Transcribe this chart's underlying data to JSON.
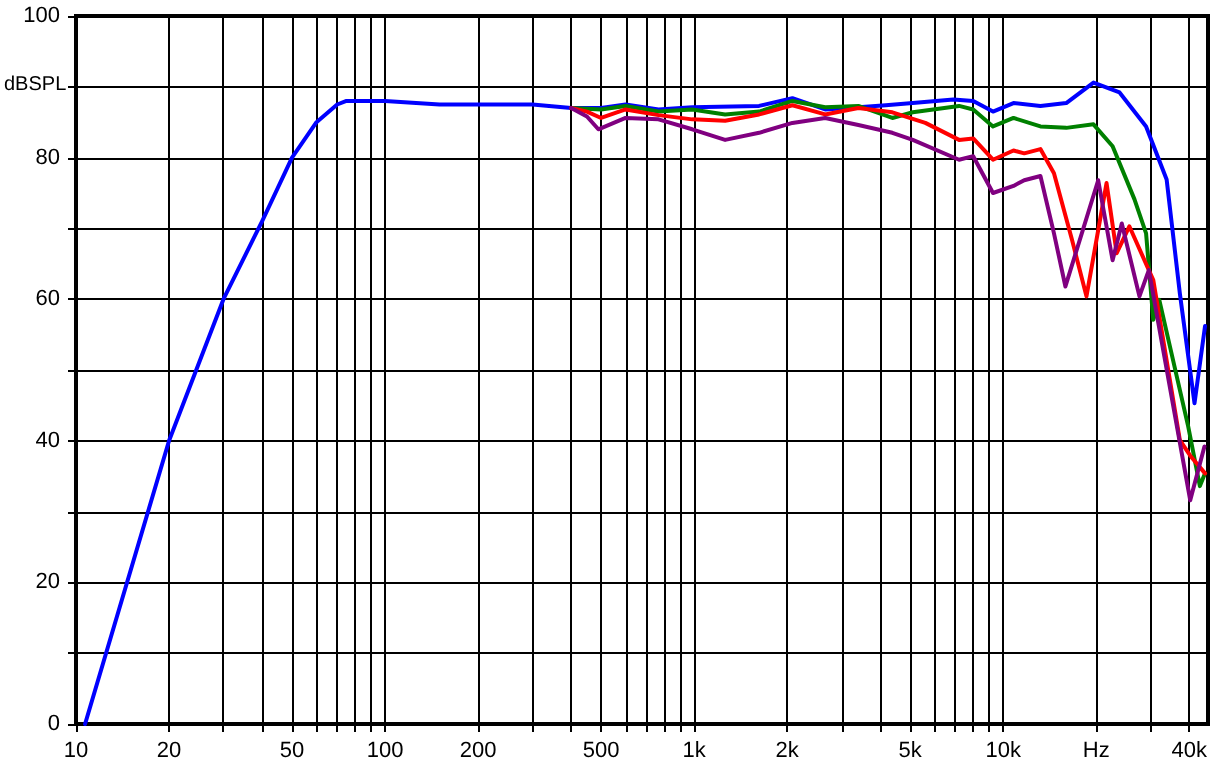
{
  "chart_data": {
    "type": "line",
    "ylabel": "dBSPL",
    "log": "x",
    "grid": true,
    "marker": "none",
    "line_style": "solid",
    "xlim": [
      10,
      46000
    ],
    "ylim": [
      0,
      100
    ],
    "xticks": [
      10,
      20,
      {
        "value": 30,
        "label": null
      },
      {
        "value": 40,
        "label": null
      },
      50,
      {
        "value": 60,
        "label": null
      },
      {
        "value": 70,
        "label": null
      },
      {
        "value": 80,
        "label": null
      },
      {
        "value": 90,
        "label": null
      },
      100,
      200,
      {
        "value": 300,
        "label": null
      },
      {
        "value": 400,
        "label": null
      },
      500,
      {
        "value": 600,
        "label": null
      },
      {
        "value": 700,
        "label": null
      },
      {
        "value": 800,
        "label": null
      },
      {
        "value": 900,
        "label": null
      },
      {
        "value": 1000,
        "label": "1k"
      },
      {
        "value": 2000,
        "label": "2k"
      },
      {
        "value": 3000,
        "label": null
      },
      {
        "value": 4000,
        "label": null
      },
      {
        "value": 5000,
        "label": "5k"
      },
      {
        "value": 6000,
        "label": null
      },
      {
        "value": 7000,
        "label": null
      },
      {
        "value": 8000,
        "label": null
      },
      {
        "value": 9000,
        "label": null
      },
      {
        "value": 10000,
        "label": "10k"
      },
      {
        "value": 20000,
        "label": "Hz"
      },
      {
        "value": 30000,
        "label": null
      },
      {
        "value": 40000,
        "label": "40k"
      }
    ],
    "yticks": [
      0,
      {
        "value": 10,
        "label": null
      },
      20,
      {
        "value": 30,
        "label": null
      },
      40,
      {
        "value": 50,
        "label": null
      },
      60,
      {
        "value": 70,
        "label": null
      },
      80,
      {
        "value": 90,
        "label": null
      },
      100
    ],
    "series": [
      {
        "color": "#0000ff",
        "x": [
          10.7,
          20,
          30,
          40,
          50,
          60,
          70,
          75,
          100,
          150,
          300,
          400,
          500,
          600,
          767,
          986,
          1623,
          2080,
          2655,
          3400,
          4170,
          5100,
          6900,
          8000,
          9270,
          10800,
          13200,
          16000,
          19600,
          23800,
          29000,
          33800,
          37300,
          41600,
          45000
        ],
        "values": [
          0,
          40,
          60,
          71,
          80,
          85,
          87.5,
          88,
          88,
          87.5,
          87.5,
          87,
          87,
          87.5,
          86.8,
          87.1,
          87.3,
          88.4,
          86.8,
          87.1,
          87.4,
          87.7,
          88.2,
          88,
          86.5,
          87.7,
          87.3,
          87.7,
          90.6,
          89.2,
          84.4,
          76.9,
          60.8,
          45.3,
          56.2
        ]
      },
      {
        "color": "#008000",
        "x": [
          400,
          500,
          600,
          767,
          986,
          1260,
          1623,
          2080,
          2655,
          3400,
          4380,
          5100,
          7200,
          8000,
          9270,
          10800,
          13200,
          16000,
          19600,
          22600,
          26600,
          29000,
          30600,
          32000,
          39700,
          43300,
          45000
        ],
        "values": [
          87,
          86.8,
          87.3,
          86.5,
          86.8,
          86.1,
          86.5,
          88,
          87.1,
          87.3,
          85.6,
          86.4,
          87.3,
          86.8,
          84.4,
          85.6,
          84.4,
          84.2,
          84.7,
          81.6,
          74.1,
          69.3,
          57.1,
          59.9,
          42,
          33.6,
          35.4
        ]
      },
      {
        "color": "#ff0000",
        "x": [
          400,
          450,
          500,
          600,
          767,
          986,
          1260,
          1623,
          2080,
          2655,
          3400,
          4380,
          5600,
          7200,
          8000,
          9270,
          10800,
          11700,
          13200,
          14600,
          16700,
          18600,
          21600,
          23300,
          25600,
          30600,
          37300,
          40300,
          45000
        ],
        "values": [
          87,
          86.5,
          85.6,
          86.8,
          86,
          85.4,
          85.2,
          86.1,
          87.4,
          86.1,
          87,
          86.4,
          84.9,
          82.5,
          82.7,
          79.7,
          81,
          80.6,
          81.2,
          77.8,
          68.4,
          60.4,
          76.4,
          66.5,
          70.3,
          62.7,
          40.1,
          37.9,
          35.4
        ]
      },
      {
        "color": "#800080",
        "x": [
          400,
          450,
          490,
          600,
          767,
          986,
          1260,
          1623,
          2080,
          2655,
          3400,
          4380,
          5100,
          7200,
          8000,
          9270,
          10800,
          11700,
          13200,
          14600,
          15900,
          20300,
          22600,
          24200,
          27600,
          29600,
          40300,
          44800
        ],
        "values": [
          87,
          85.8,
          84,
          85.6,
          85.4,
          84,
          82.5,
          83.5,
          84.9,
          85.6,
          84.6,
          83.5,
          82.5,
          79.7,
          80.2,
          75,
          76,
          76.8,
          77.4,
          69.3,
          61.8,
          76.8,
          65.5,
          70.7,
          60.4,
          64.1,
          31.6,
          39.2
        ]
      }
    ]
  }
}
